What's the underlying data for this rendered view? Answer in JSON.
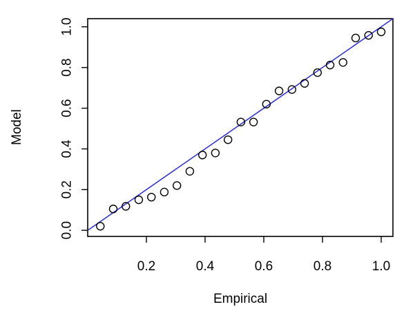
{
  "chart_data": {
    "type": "scatter",
    "title": "",
    "xlabel": "Empirical",
    "ylabel": "Model",
    "xlim": [
      0.0,
      1.04
    ],
    "ylim": [
      -0.03,
      1.04
    ],
    "grid": false,
    "xticks": [
      0.2,
      0.4,
      0.6,
      0.8,
      1.0
    ],
    "xtick_labels": [
      "0.2",
      "0.4",
      "0.6",
      "0.8",
      "1.0"
    ],
    "yticks": [
      0.0,
      0.2,
      0.4,
      0.6,
      0.8,
      1.0
    ],
    "ytick_labels": [
      "0.0",
      "0.2",
      "0.4",
      "0.6",
      "0.8",
      "1.0"
    ],
    "series": [
      {
        "type": "scatter",
        "color": "#000000",
        "x": [
          0.043,
          0.087,
          0.13,
          0.174,
          0.217,
          0.261,
          0.304,
          0.348,
          0.391,
          0.435,
          0.478,
          0.522,
          0.565,
          0.609,
          0.652,
          0.696,
          0.739,
          0.783,
          0.826,
          0.87,
          0.913,
          0.957,
          1.0
        ],
        "y": [
          0.02,
          0.105,
          0.118,
          0.15,
          0.163,
          0.188,
          0.22,
          0.29,
          0.37,
          0.38,
          0.445,
          0.532,
          0.532,
          0.62,
          0.685,
          0.692,
          0.722,
          0.775,
          0.812,
          0.825,
          0.945,
          0.958,
          0.975
        ]
      },
      {
        "type": "line",
        "color": "#3333dd",
        "x": [
          0.0,
          1.04
        ],
        "y": [
          0.0,
          1.04
        ]
      }
    ]
  }
}
